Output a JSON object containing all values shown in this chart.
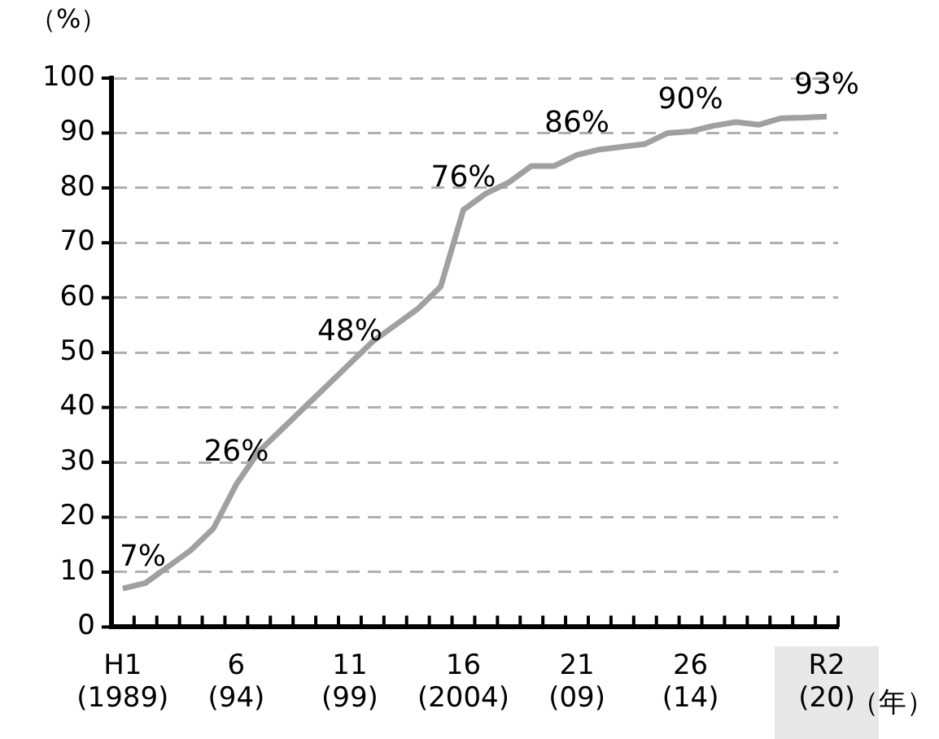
{
  "chart_data": {
    "type": "line",
    "categories": [
      "H1\n(1989)",
      null,
      null,
      null,
      null,
      "6\n(94)",
      null,
      null,
      null,
      null,
      "11\n(99)",
      null,
      null,
      null,
      null,
      "16\n(2004)",
      null,
      null,
      null,
      null,
      "21\n(09)",
      null,
      null,
      null,
      null,
      "26\n(14)",
      null,
      null,
      null,
      null,
      null,
      "R2\n(20)"
    ],
    "series": [
      {
        "color": "#a0a0a0",
        "values": [
          7,
          8,
          11,
          14,
          18,
          26,
          32,
          36,
          40,
          44,
          48,
          52,
          55,
          58,
          62,
          76,
          79,
          81,
          84,
          84,
          86,
          87,
          87.5,
          88,
          90,
          90.3,
          91.3,
          92,
          91.5,
          92.7,
          92.8,
          93
        ],
        "value_labels": [
          "7%",
          null,
          null,
          null,
          null,
          "26%",
          null,
          null,
          null,
          null,
          "48%",
          null,
          null,
          null,
          null,
          "76%",
          null,
          null,
          null,
          null,
          "86%",
          null,
          null,
          null,
          null,
          "90%",
          null,
          null,
          null,
          null,
          null,
          "93%"
        ]
      }
    ],
    "ylim": [
      0,
      100
    ],
    "yticks": [
      0,
      10,
      20,
      30,
      40,
      50,
      60,
      70,
      80,
      90,
      100
    ],
    "ylabel": "（%）",
    "xlabel": "（年）",
    "grid": "y",
    "legend": false,
    "marker": "none",
    "line_style": "solid"
  }
}
